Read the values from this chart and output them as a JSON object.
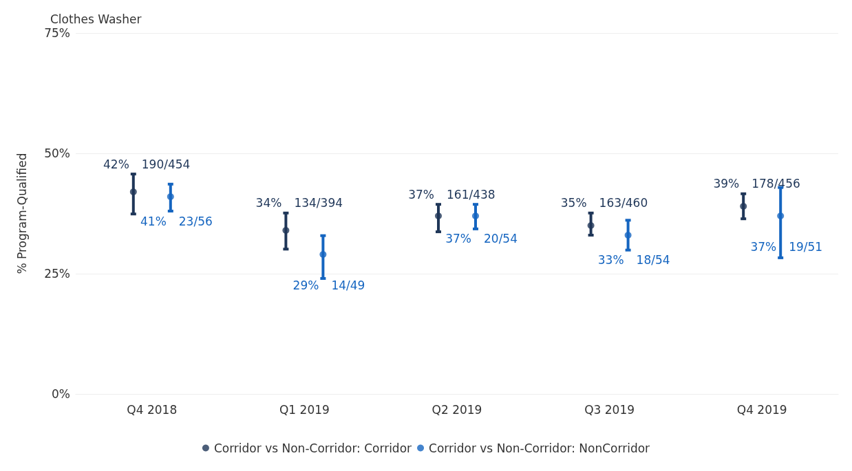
{
  "chart_data": {
    "type": "scatter",
    "title": "Clothes Washer",
    "ylabel": "% Program-Qualified",
    "categories": [
      "Q4 2018",
      "Q1 2019",
      "Q2 2019",
      "Q3 2019",
      "Q4 2019"
    ],
    "ylim": [
      0,
      75
    ],
    "yticks": [
      {
        "value": 0,
        "label": "0%"
      },
      {
        "value": 25,
        "label": "25%"
      },
      {
        "value": 50,
        "label": "50%"
      },
      {
        "value": 75,
        "label": "75%"
      }
    ],
    "grid": "y",
    "legend": "bottom",
    "marker": "circle",
    "series": [
      {
        "name": "Corridor vs Non-Corridor: Corridor",
        "color": "#1f3658",
        "values": [
          42,
          34,
          37,
          35,
          39
        ],
        "errors": [
          [
            37.4,
            45.7
          ],
          [
            30.1,
            37.6
          ],
          [
            33.7,
            39.4
          ],
          [
            33,
            37.6
          ],
          [
            36.4,
            41.6
          ]
        ],
        "value_labels": [
          "42% 190/454",
          "34% 134/394",
          "37% 161/438",
          "35% 163/460",
          "39% 178/456"
        ]
      },
      {
        "name": "Corridor vs Non-Corridor: NonCorridor",
        "color": "#1565c0",
        "values": [
          41,
          29,
          37,
          33,
          37
        ],
        "errors": [
          [
            38,
            43.6
          ],
          [
            24,
            32.9
          ],
          [
            34.3,
            39.4
          ],
          [
            29.9,
            36.1
          ],
          [
            28.3,
            42.9
          ]
        ],
        "value_labels": [
          "41% 23/56",
          "29% 14/49",
          "37% 20/54",
          "33% 18/54",
          "37% 19/51"
        ]
      }
    ]
  }
}
